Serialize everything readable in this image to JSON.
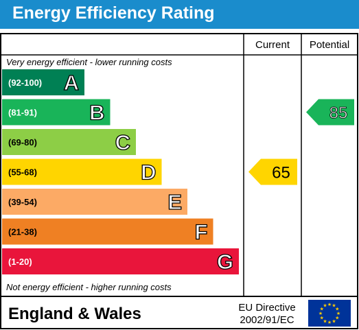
{
  "title": "Energy Efficiency Rating",
  "columns": {
    "current": "Current",
    "potential": "Potential"
  },
  "top_note": "Very energy efficient - lower running costs",
  "bottom_note": "Not energy efficient - higher running costs",
  "region": "England & Wales",
  "directive_line1": "EU Directive",
  "directive_line2": "2002/91/EC",
  "chart_data": {
    "type": "bar",
    "categories": [
      "A",
      "B",
      "C",
      "D",
      "E",
      "F",
      "G"
    ],
    "bands": [
      {
        "letter": "A",
        "range": "(92-100)",
        "min": 92,
        "max": 100,
        "color": "#008054"
      },
      {
        "letter": "B",
        "range": "(81-91)",
        "min": 81,
        "max": 91,
        "color": "#19b459"
      },
      {
        "letter": "C",
        "range": "(69-80)",
        "min": 69,
        "max": 80,
        "color": "#8dce46"
      },
      {
        "letter": "D",
        "range": "(55-68)",
        "min": 55,
        "max": 68,
        "color": "#ffd500"
      },
      {
        "letter": "E",
        "range": "(39-54)",
        "min": 39,
        "max": 54,
        "color": "#fcaa65"
      },
      {
        "letter": "F",
        "range": "(21-38)",
        "min": 21,
        "max": 38,
        "color": "#ef8023"
      },
      {
        "letter": "G",
        "range": "(1-20)",
        "min": 1,
        "max": 20,
        "color": "#e9153b"
      }
    ],
    "current": {
      "value": 65,
      "label": "65",
      "band": "D",
      "color": "#ffd500"
    },
    "potential": {
      "value": 85,
      "label": "85",
      "band": "B",
      "color": "#19b459"
    }
  }
}
